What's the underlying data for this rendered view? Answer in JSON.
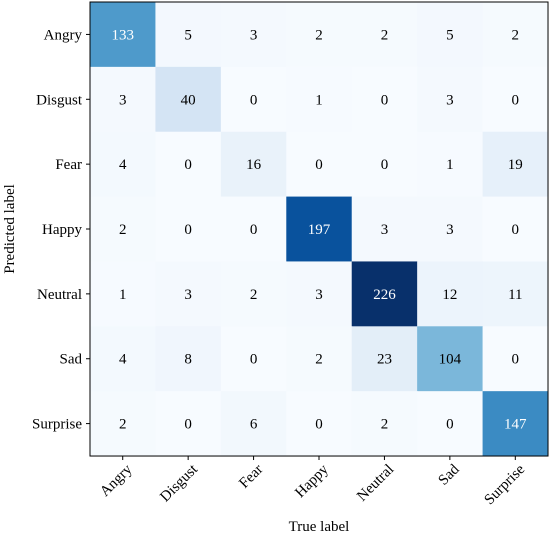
{
  "chart_data": {
    "type": "heatmap",
    "title": "",
    "xlabel": "True label",
    "ylabel": "Predicted label",
    "x_categories": [
      "Angry",
      "Disgust",
      "Fear",
      "Happy",
      "Neutral",
      "Sad",
      "Surprise"
    ],
    "y_categories": [
      "Angry",
      "Disgust",
      "Fear",
      "Happy",
      "Neutral",
      "Sad",
      "Surprise"
    ],
    "values": [
      [
        133,
        5,
        3,
        2,
        2,
        5,
        2
      ],
      [
        3,
        40,
        0,
        1,
        0,
        3,
        0
      ],
      [
        4,
        0,
        16,
        0,
        0,
        1,
        19
      ],
      [
        2,
        0,
        0,
        197,
        3,
        3,
        0
      ],
      [
        1,
        3,
        2,
        3,
        226,
        12,
        11
      ],
      [
        4,
        8,
        0,
        2,
        23,
        104,
        0
      ],
      [
        2,
        0,
        6,
        0,
        2,
        0,
        147
      ]
    ],
    "value_range": [
      0,
      226
    ],
    "colormap": "Blues",
    "colormap_stops": [
      "#f7fbff",
      "#deebf7",
      "#c6dbef",
      "#9ecae1",
      "#6baed6",
      "#4292c6",
      "#2171b5",
      "#08519c",
      "#08306b"
    ],
    "text_color_dark": "#000000",
    "text_color_light": "#ffffff",
    "grid": false
  }
}
